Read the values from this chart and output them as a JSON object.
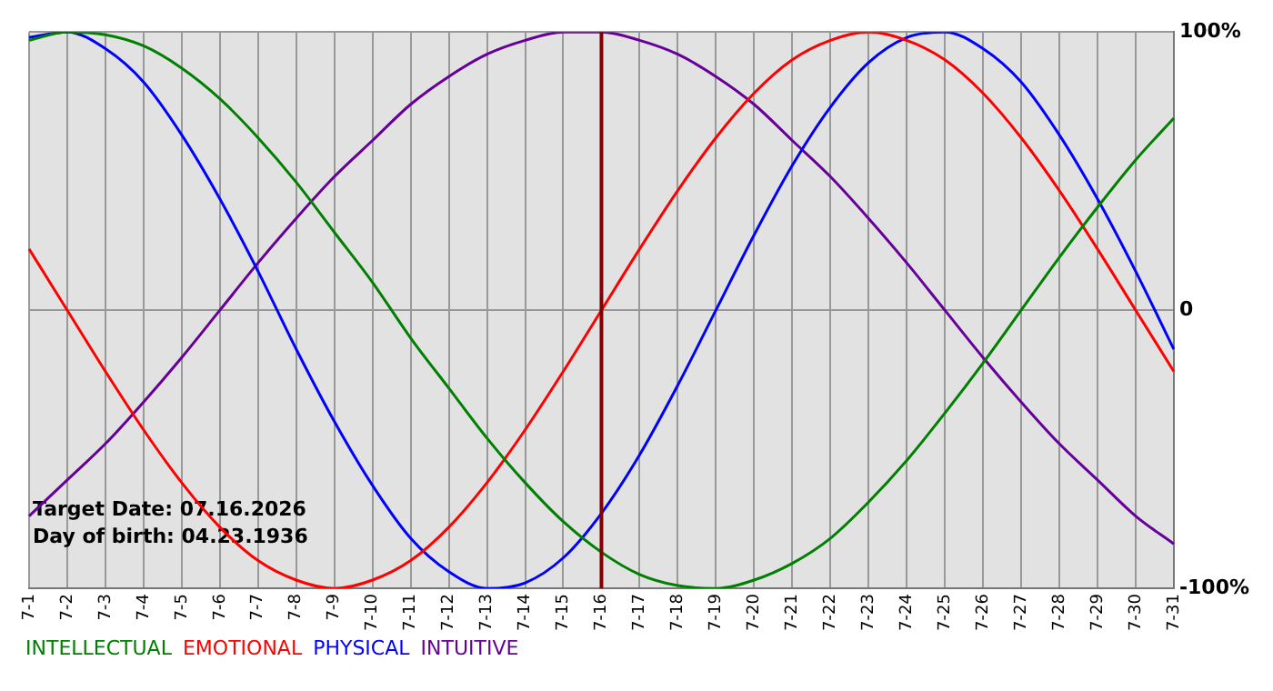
{
  "chart_data": {
    "type": "line",
    "categories": [
      "7-1",
      "7-2",
      "7-3",
      "7-4",
      "7-5",
      "7-6",
      "7-7",
      "7-8",
      "7-9",
      "7-10",
      "7-11",
      "7-12",
      "7-13",
      "7-14",
      "7-15",
      "7-16",
      "7-17",
      "7-18",
      "7-19",
      "7-20",
      "7-21",
      "7-22",
      "7-23",
      "7-24",
      "7-25",
      "7-26",
      "7-27",
      "7-28",
      "7-29",
      "7-30",
      "7-31"
    ],
    "series": [
      {
        "name": "INTELLECTUAL",
        "color": "#008000",
        "values": [
          97,
          100,
          99,
          95,
          87,
          76,
          62,
          46,
          28,
          10,
          -10,
          -28,
          -46,
          -62,
          -76,
          -87,
          -95,
          -99,
          -100,
          -97,
          -91,
          -82,
          -69,
          -54,
          -37,
          -19,
          0,
          19,
          37,
          54,
          69
        ]
      },
      {
        "name": "EMOTIONAL",
        "color": "#ff0000",
        "values": [
          22,
          0,
          -22,
          -43,
          -62,
          -78,
          -90,
          -97,
          -100,
          -97,
          -90,
          -78,
          -62,
          -43,
          -22,
          0,
          22,
          43,
          62,
          78,
          90,
          97,
          100,
          97,
          90,
          78,
          62,
          43,
          22,
          0,
          -22
        ]
      },
      {
        "name": "PHYSICAL",
        "color": "#0000ff",
        "values": [
          98,
          100,
          94,
          82,
          63,
          40,
          14,
          -14,
          -40,
          -63,
          -82,
          -94,
          -100,
          -98,
          -89,
          -73,
          -52,
          -27,
          0,
          27,
          52,
          73,
          89,
          98,
          100,
          94,
          82,
          63,
          40,
          14,
          -14
        ]
      },
      {
        "name": "INTUITIVE",
        "color": "#660099",
        "values": [
          -74,
          -61,
          -48,
          -33,
          -17,
          0,
          17,
          33,
          48,
          61,
          74,
          84,
          92,
          97,
          100,
          100,
          97,
          92,
          84,
          74,
          61,
          48,
          33,
          17,
          0,
          -17,
          -33,
          -48,
          -61,
          -74,
          -84
        ]
      }
    ],
    "ylim": [
      -100,
      100
    ],
    "yticks": [
      {
        "value": 100,
        "label": "100%"
      },
      0,
      {
        "value": -100,
        "label": "-100%"
      }
    ],
    "grid": true,
    "marker": "none",
    "line_style": "solid",
    "legend": "bottom left",
    "ref_lines": [
      {
        "axis": "x",
        "value": "7-16",
        "color": "#800000"
      }
    ],
    "annotations": [
      "Target Date: 07.16.2026",
      "Day of birth: 04.23.1936"
    ]
  }
}
